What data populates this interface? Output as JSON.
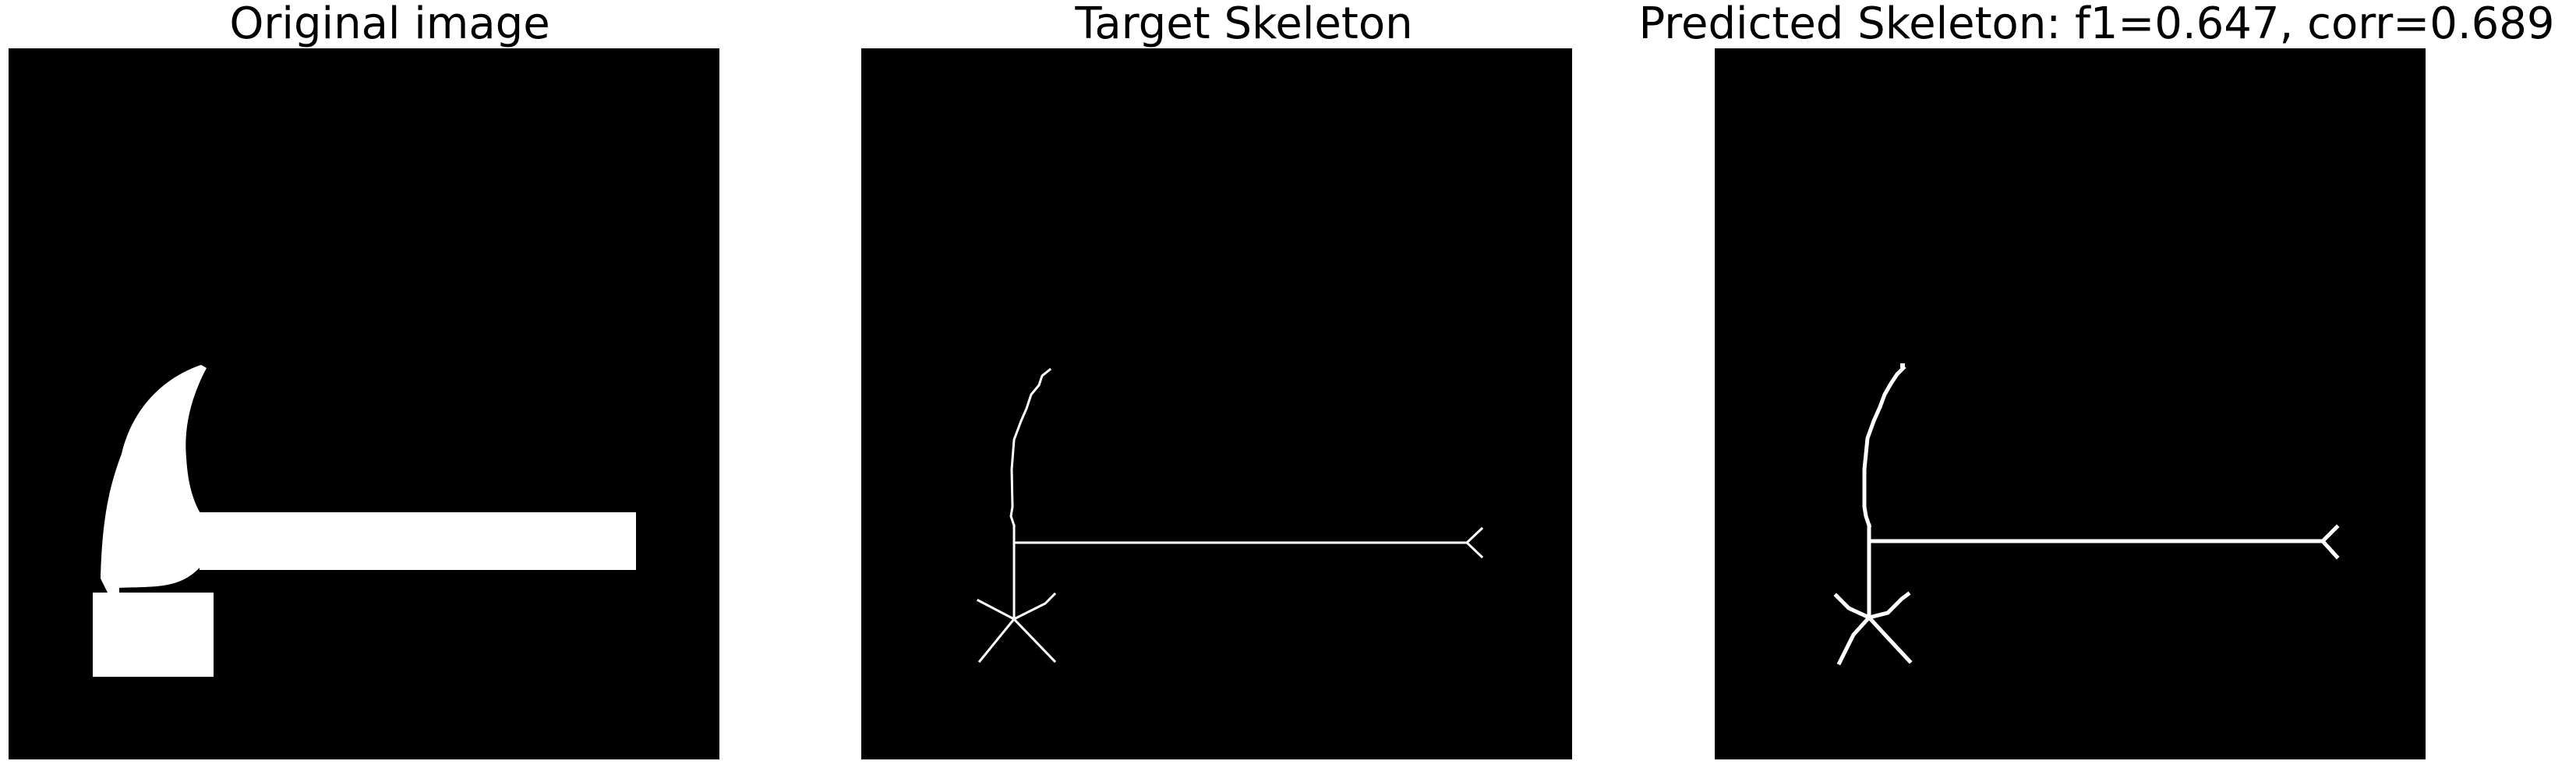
{
  "figure": {
    "panels": [
      {
        "title": "Original image"
      },
      {
        "title": "Target Skeleton"
      },
      {
        "title": "Predicted Skeleton: f1=0.647, corr=0.689"
      }
    ],
    "colors": {
      "background": "#000000",
      "foreground": "#ffffff",
      "page": "#ffffff"
    }
  }
}
